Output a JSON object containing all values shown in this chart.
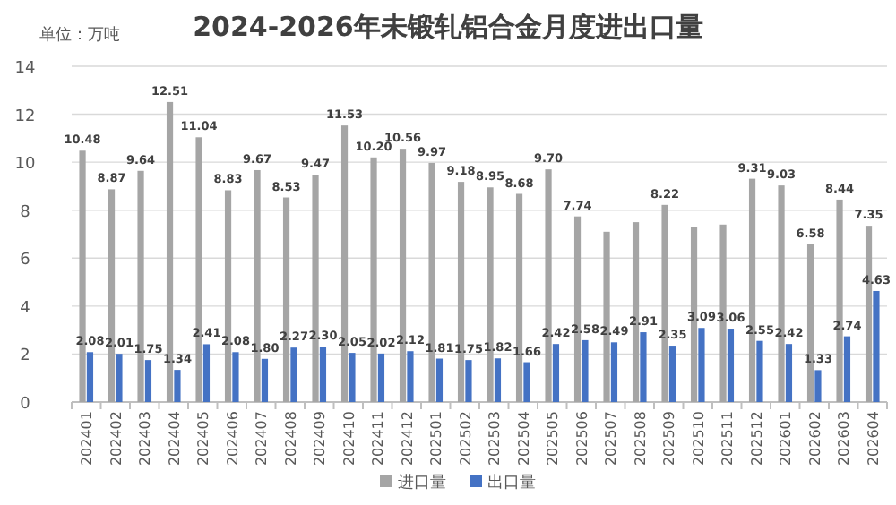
{
  "chart_data": {
    "type": "bar",
    "title": "2024-2026年未锻轧铝合金月度进出口量",
    "ylabel": "单位：万吨",
    "categories": [
      "202401",
      "202402",
      "202403",
      "202404",
      "202405",
      "202406",
      "202407",
      "202408",
      "202409",
      "202410",
      "202411",
      "202412",
      "202501",
      "202502",
      "202503",
      "202504",
      "202505",
      "202506",
      "202507",
      "202508",
      "202509",
      "202510",
      "202511",
      "202512",
      "202601",
      "202602",
      "202603",
      "202604"
    ],
    "series": [
      {
        "name": "进口量",
        "color": "#a5a5a5",
        "values": [
          10.48,
          8.87,
          9.64,
          12.51,
          11.04,
          8.83,
          9.67,
          8.53,
          9.47,
          11.53,
          10.2,
          10.56,
          9.97,
          9.18,
          8.95,
          8.68,
          9.7,
          7.74,
          7.1,
          7.5,
          8.22,
          7.3,
          7.4,
          9.31,
          9.03,
          6.58,
          8.44,
          7.35
        ],
        "value_labels": [
          "10.48",
          "8.87",
          "9.64",
          "12.51",
          "11.04",
          "8.83",
          "9.67",
          "8.53",
          "9.47",
          "11.53",
          "10.20",
          "10.56",
          "9.97",
          "9.18",
          "8.95",
          "8.68",
          "9.70",
          "7.74",
          null,
          null,
          "8.22",
          null,
          null,
          "9.31",
          "9.03",
          "6.58",
          "8.44",
          "7.35"
        ]
      },
      {
        "name": "出口量",
        "color": "#4472c4",
        "values": [
          2.08,
          2.01,
          1.75,
          1.34,
          2.41,
          2.08,
          1.8,
          2.27,
          2.3,
          2.05,
          2.02,
          2.12,
          1.81,
          1.75,
          1.82,
          1.66,
          2.42,
          2.58,
          2.49,
          2.91,
          2.35,
          3.09,
          3.06,
          2.55,
          2.42,
          1.33,
          2.74,
          4.63
        ],
        "value_labels": [
          "2.08",
          "2.01",
          "1.75",
          "1.34",
          "2.41",
          "2.08",
          "1.80",
          "2.27",
          "2.30",
          "2.05",
          "2.02",
          "2.12",
          "1.81",
          "1.75",
          "1.82",
          "1.66",
          "2.42",
          "2.58",
          "2.49",
          "2.91",
          "2.35",
          "3.09",
          "3.06",
          "2.55",
          "2.42",
          "1.33",
          "2.74",
          "4.63"
        ]
      }
    ],
    "ylim": [
      0,
      14
    ],
    "yticks": [
      0,
      2,
      4,
      6,
      8,
      10,
      12,
      14
    ],
    "grid": "y",
    "legend": "bottom"
  }
}
